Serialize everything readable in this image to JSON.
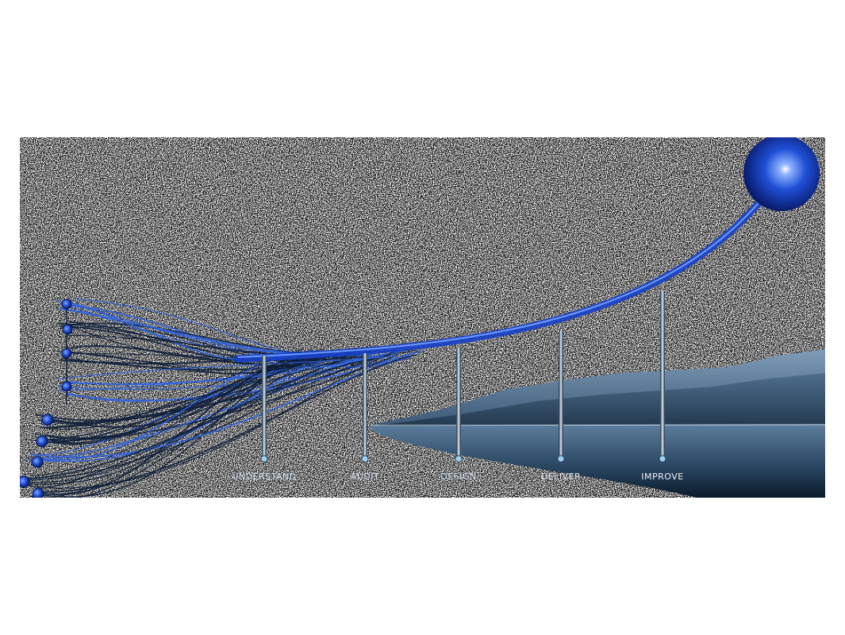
{
  "stages": [
    {
      "label": "UNDERSTAND"
    },
    {
      "label": "AUDIT"
    },
    {
      "label": "DESIGN"
    },
    {
      "label": "DELIVER"
    },
    {
      "label": "IMPROVE"
    }
  ]
}
